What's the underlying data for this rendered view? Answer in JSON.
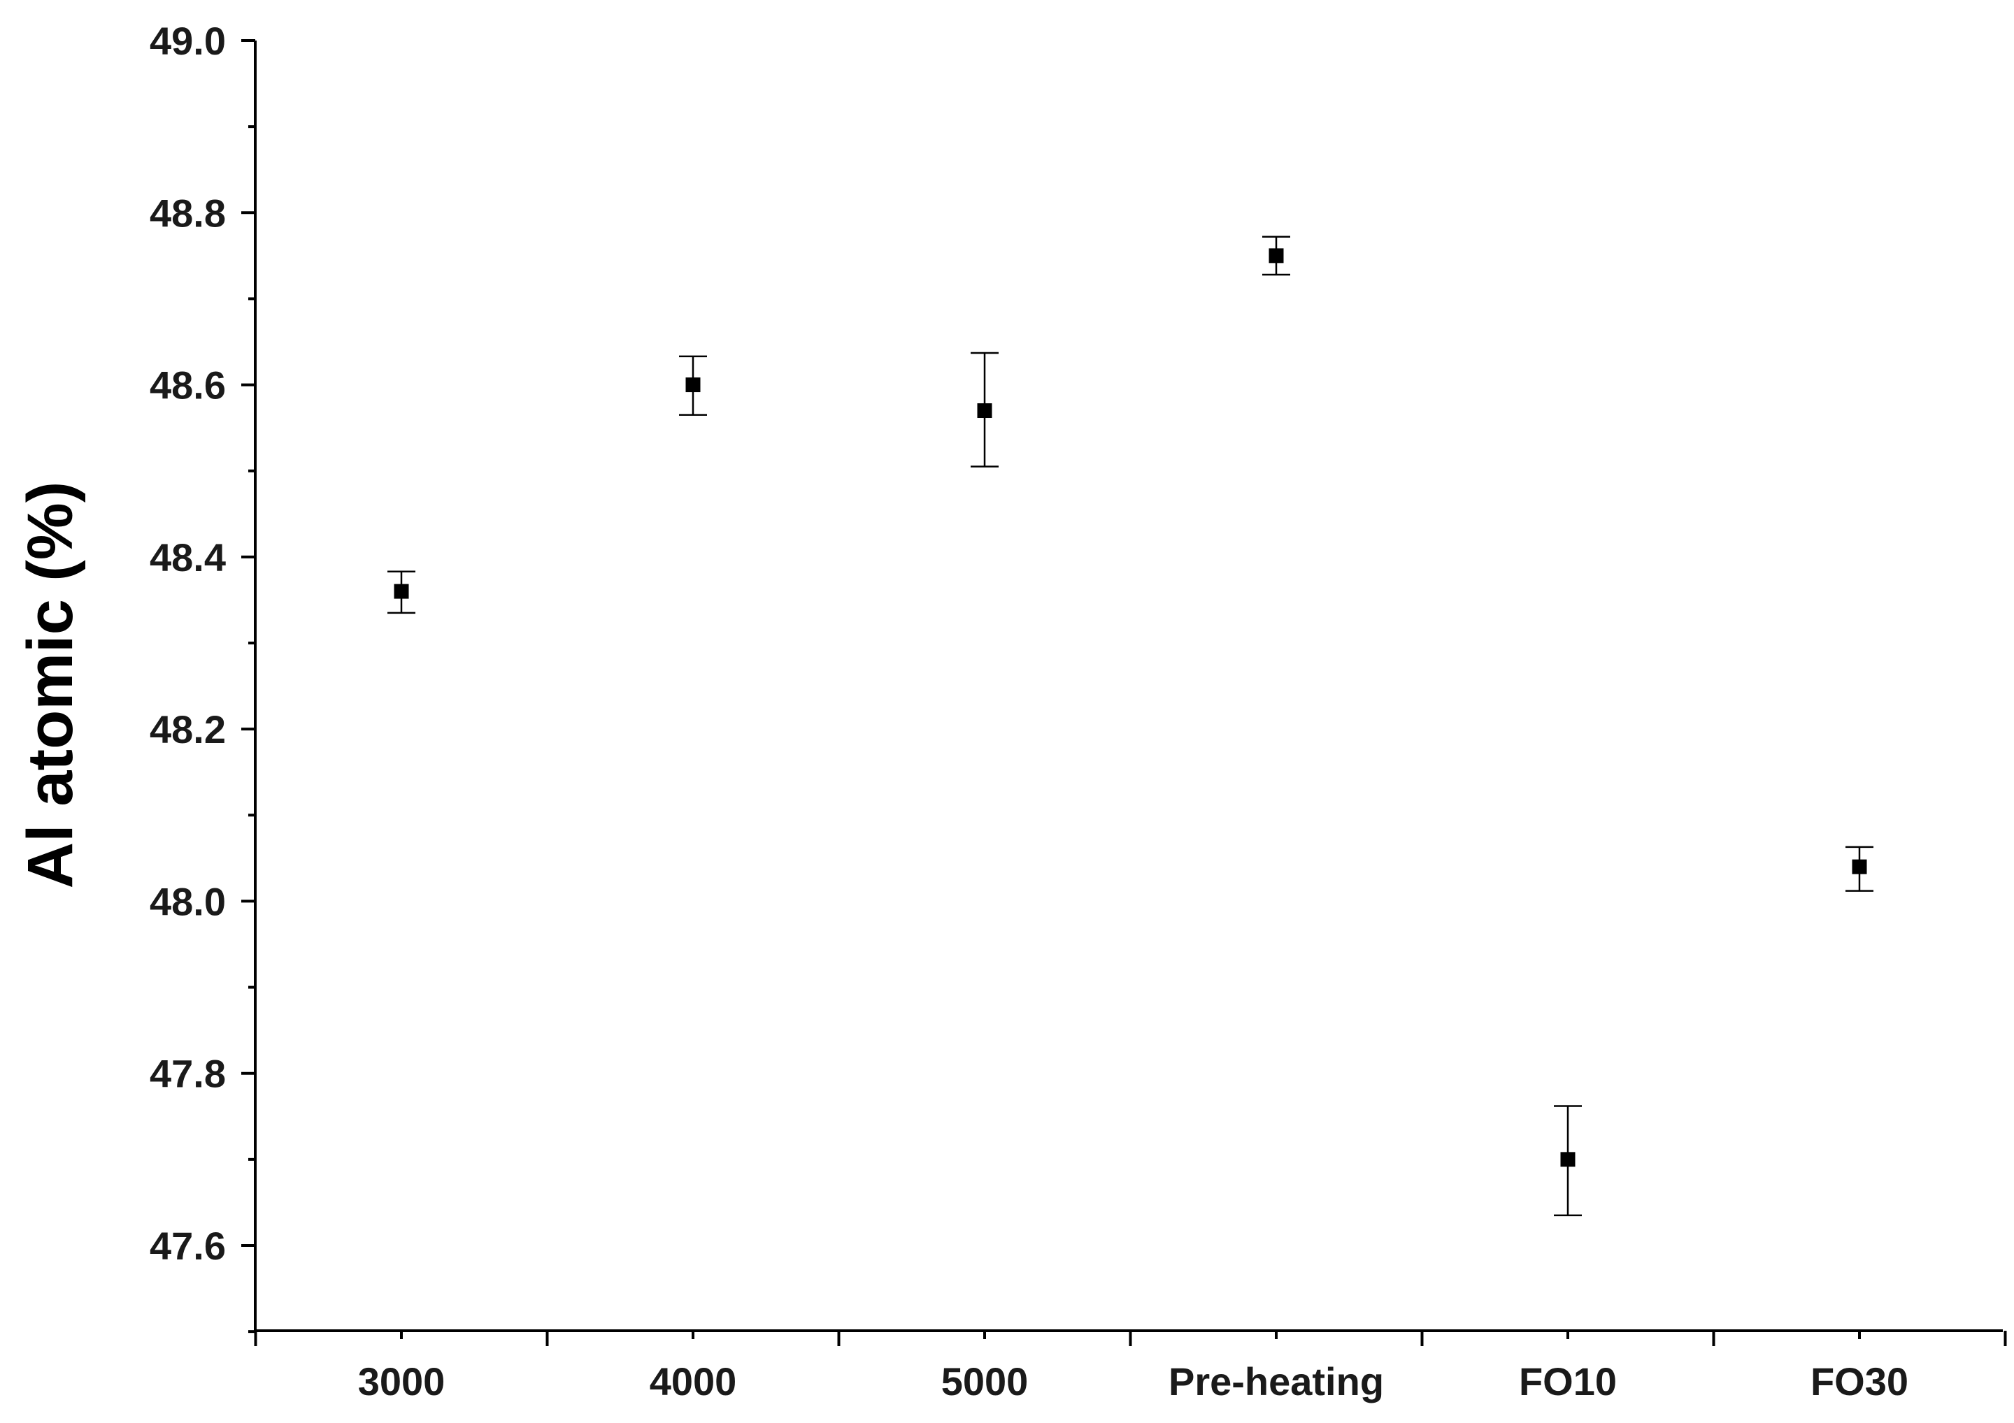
{
  "chart_data": {
    "type": "scatter",
    "categories": [
      "3000",
      "4000",
      "5000",
      "Pre-heating",
      "FO10",
      "FO30"
    ],
    "values": [
      48.36,
      48.6,
      48.57,
      48.75,
      47.7,
      48.04
    ],
    "error_low": [
      48.335,
      48.565,
      48.505,
      48.728,
      47.635,
      48.012
    ],
    "error_high": [
      48.383,
      48.633,
      48.637,
      48.772,
      47.762,
      48.063
    ],
    "title": "",
    "xlabel": "",
    "ylabel": "Al atomic (%)",
    "ylim": [
      47.5,
      49.0
    ],
    "yticks": [
      "47.6",
      "47.8",
      "48.0",
      "48.2",
      "48.4",
      "48.6",
      "48.8",
      "49.0"
    ],
    "grid": false,
    "marker": "square",
    "marker_color": "#000000"
  }
}
